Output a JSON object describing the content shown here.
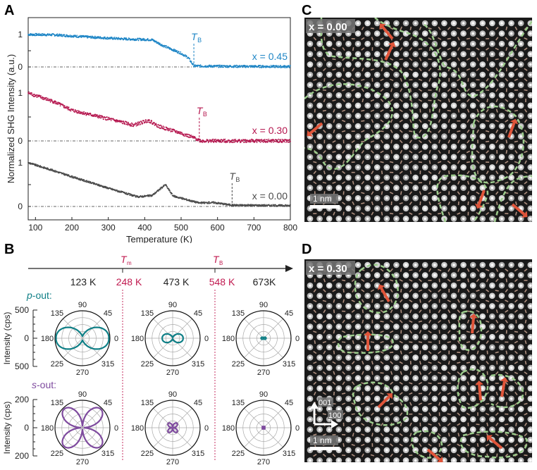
{
  "panels": {
    "a": "A",
    "b": "B",
    "c": "C",
    "d": "D"
  },
  "chart_data": [
    {
      "type": "line",
      "panel": "A",
      "xlabel": "Temperature (K)",
      "ylabel": "Normalized SHG Intensity (a.u.)",
      "xlim": [
        80,
        800
      ],
      "xticks": [
        100,
        200,
        300,
        400,
        500,
        600,
        700,
        800
      ],
      "yticks_per_series": [
        "0",
        "1"
      ],
      "marker_label": "T",
      "marker_sub": "B",
      "series": [
        {
          "name": "x = 0.45",
          "color": "#1f86c6",
          "TB": 535,
          "points": [
            [
              80,
              1.0
            ],
            [
              150,
              0.99
            ],
            [
              250,
              0.92
            ],
            [
              350,
              0.86
            ],
            [
              420,
              0.84
            ],
            [
              450,
              0.66
            ],
            [
              500,
              0.42
            ],
            [
              520,
              0.28
            ],
            [
              535,
              0.03
            ],
            [
              600,
              0.02
            ],
            [
              800,
              0.01
            ]
          ]
        },
        {
          "name": "x = 0.30",
          "color": "#b5174f",
          "TB": 550,
          "points": [
            [
              80,
              1.0
            ],
            [
              150,
              0.82
            ],
            [
              200,
              0.64
            ],
            [
              300,
              0.46
            ],
            [
              370,
              0.33
            ],
            [
              410,
              0.43
            ],
            [
              440,
              0.3
            ],
            [
              500,
              0.16
            ],
            [
              540,
              0.05
            ],
            [
              555,
              0.0
            ],
            [
              800,
              0.0
            ]
          ]
        },
        {
          "name": "x = 0.00",
          "color": "#4a4a4a",
          "TB": 640,
          "points": [
            [
              80,
              1.0
            ],
            [
              150,
              0.82
            ],
            [
              200,
              0.68
            ],
            [
              300,
              0.42
            ],
            [
              380,
              0.22
            ],
            [
              420,
              0.25
            ],
            [
              457,
              0.5
            ],
            [
              478,
              0.24
            ],
            [
              500,
              0.19
            ],
            [
              550,
              0.08
            ],
            [
              590,
              0.09
            ],
            [
              640,
              0.03
            ],
            [
              800,
              0.02
            ]
          ]
        }
      ]
    },
    {
      "type": "polar",
      "panel": "B",
      "timeline": {
        "temperatures": [
          "123 K",
          "248 K",
          "473 K",
          "548 K",
          "673K"
        ],
        "highlight": [
          false,
          true,
          false,
          true,
          false
        ],
        "markers": [
          {
            "label": "T",
            "sub": "m"
          },
          {
            "label": "T",
            "sub": "B"
          }
        ]
      },
      "angle_labels": [
        "0",
        "45",
        "90",
        "135",
        "180",
        "225",
        "270",
        "315"
      ],
      "rows": [
        {
          "title_italic": "p",
          "title_rest": "-out:",
          "color": "#0f7f86",
          "ylabel": "Intensity (cps)",
          "yticks": [
            "500",
            "0",
            "500"
          ],
          "rmax": 500,
          "shape": "two-lobe",
          "amplitudes": [
            480,
            190,
            45
          ]
        },
        {
          "title_italic": "s",
          "title_rest": "-out:",
          "color": "#7e4a9e",
          "ylabel": "Intensity (cps)",
          "yticks": [
            "200",
            "0",
            "200"
          ],
          "rmax": 200,
          "shape": "four-lobe",
          "amplitudes": [
            190,
            45,
            12
          ]
        }
      ]
    }
  ],
  "images": {
    "c": {
      "label": "x = 0.00",
      "scale": "1 nm"
    },
    "d": {
      "label": "x = 0.30",
      "scale": "1 nm",
      "axis_v": "001",
      "axis_h": "100"
    }
  },
  "colors": {
    "red": "#c0194f",
    "green": "#9ccc8c",
    "arrow": "#e0553a"
  }
}
